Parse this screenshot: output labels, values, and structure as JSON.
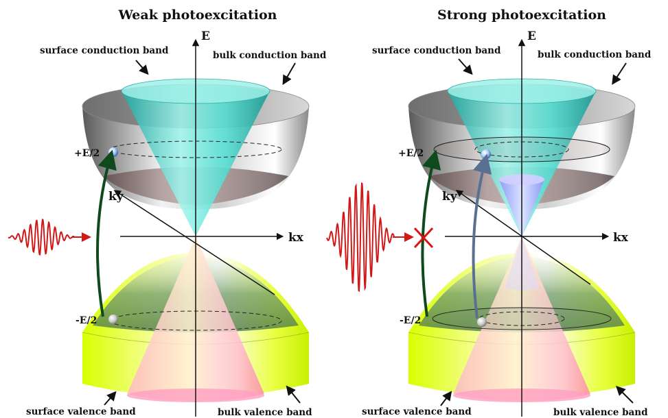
{
  "panels": [
    {
      "title": "Weak photoexcitation",
      "surface_conduction": "surface conduction band",
      "bulk_conduction": "bulk conduction band",
      "surface_valence": "surface valence band",
      "bulk_valence": "bulk valence band",
      "axis_e": "E",
      "axis_kx": "kx",
      "axis_ky": "ky",
      "plus_level": "+E/2",
      "minus_level": "-E/2"
    },
    {
      "title": "Strong photoexcitation",
      "surface_conduction": "surface conduction band",
      "bulk_conduction": "bulk conduction band",
      "surface_valence": "surface valence band",
      "bulk_valence": "bulk valence band",
      "axis_e": "E",
      "axis_kx": "kx",
      "axis_ky": "ky",
      "plus_level": "+E/2",
      "minus_level": "-E/2"
    }
  ],
  "colors": {
    "pulse": "#d01818",
    "arrow_green": "#0f4a1e",
    "arrow_blue": "#5a7090",
    "surface_cone_upper": "#40e0d0",
    "surface_cone_lower": "#ff9fb4",
    "bulk_valence": "#d8ff00",
    "bulk_conduction": "#b8b8b8",
    "blocked_mark": "#e01010"
  }
}
